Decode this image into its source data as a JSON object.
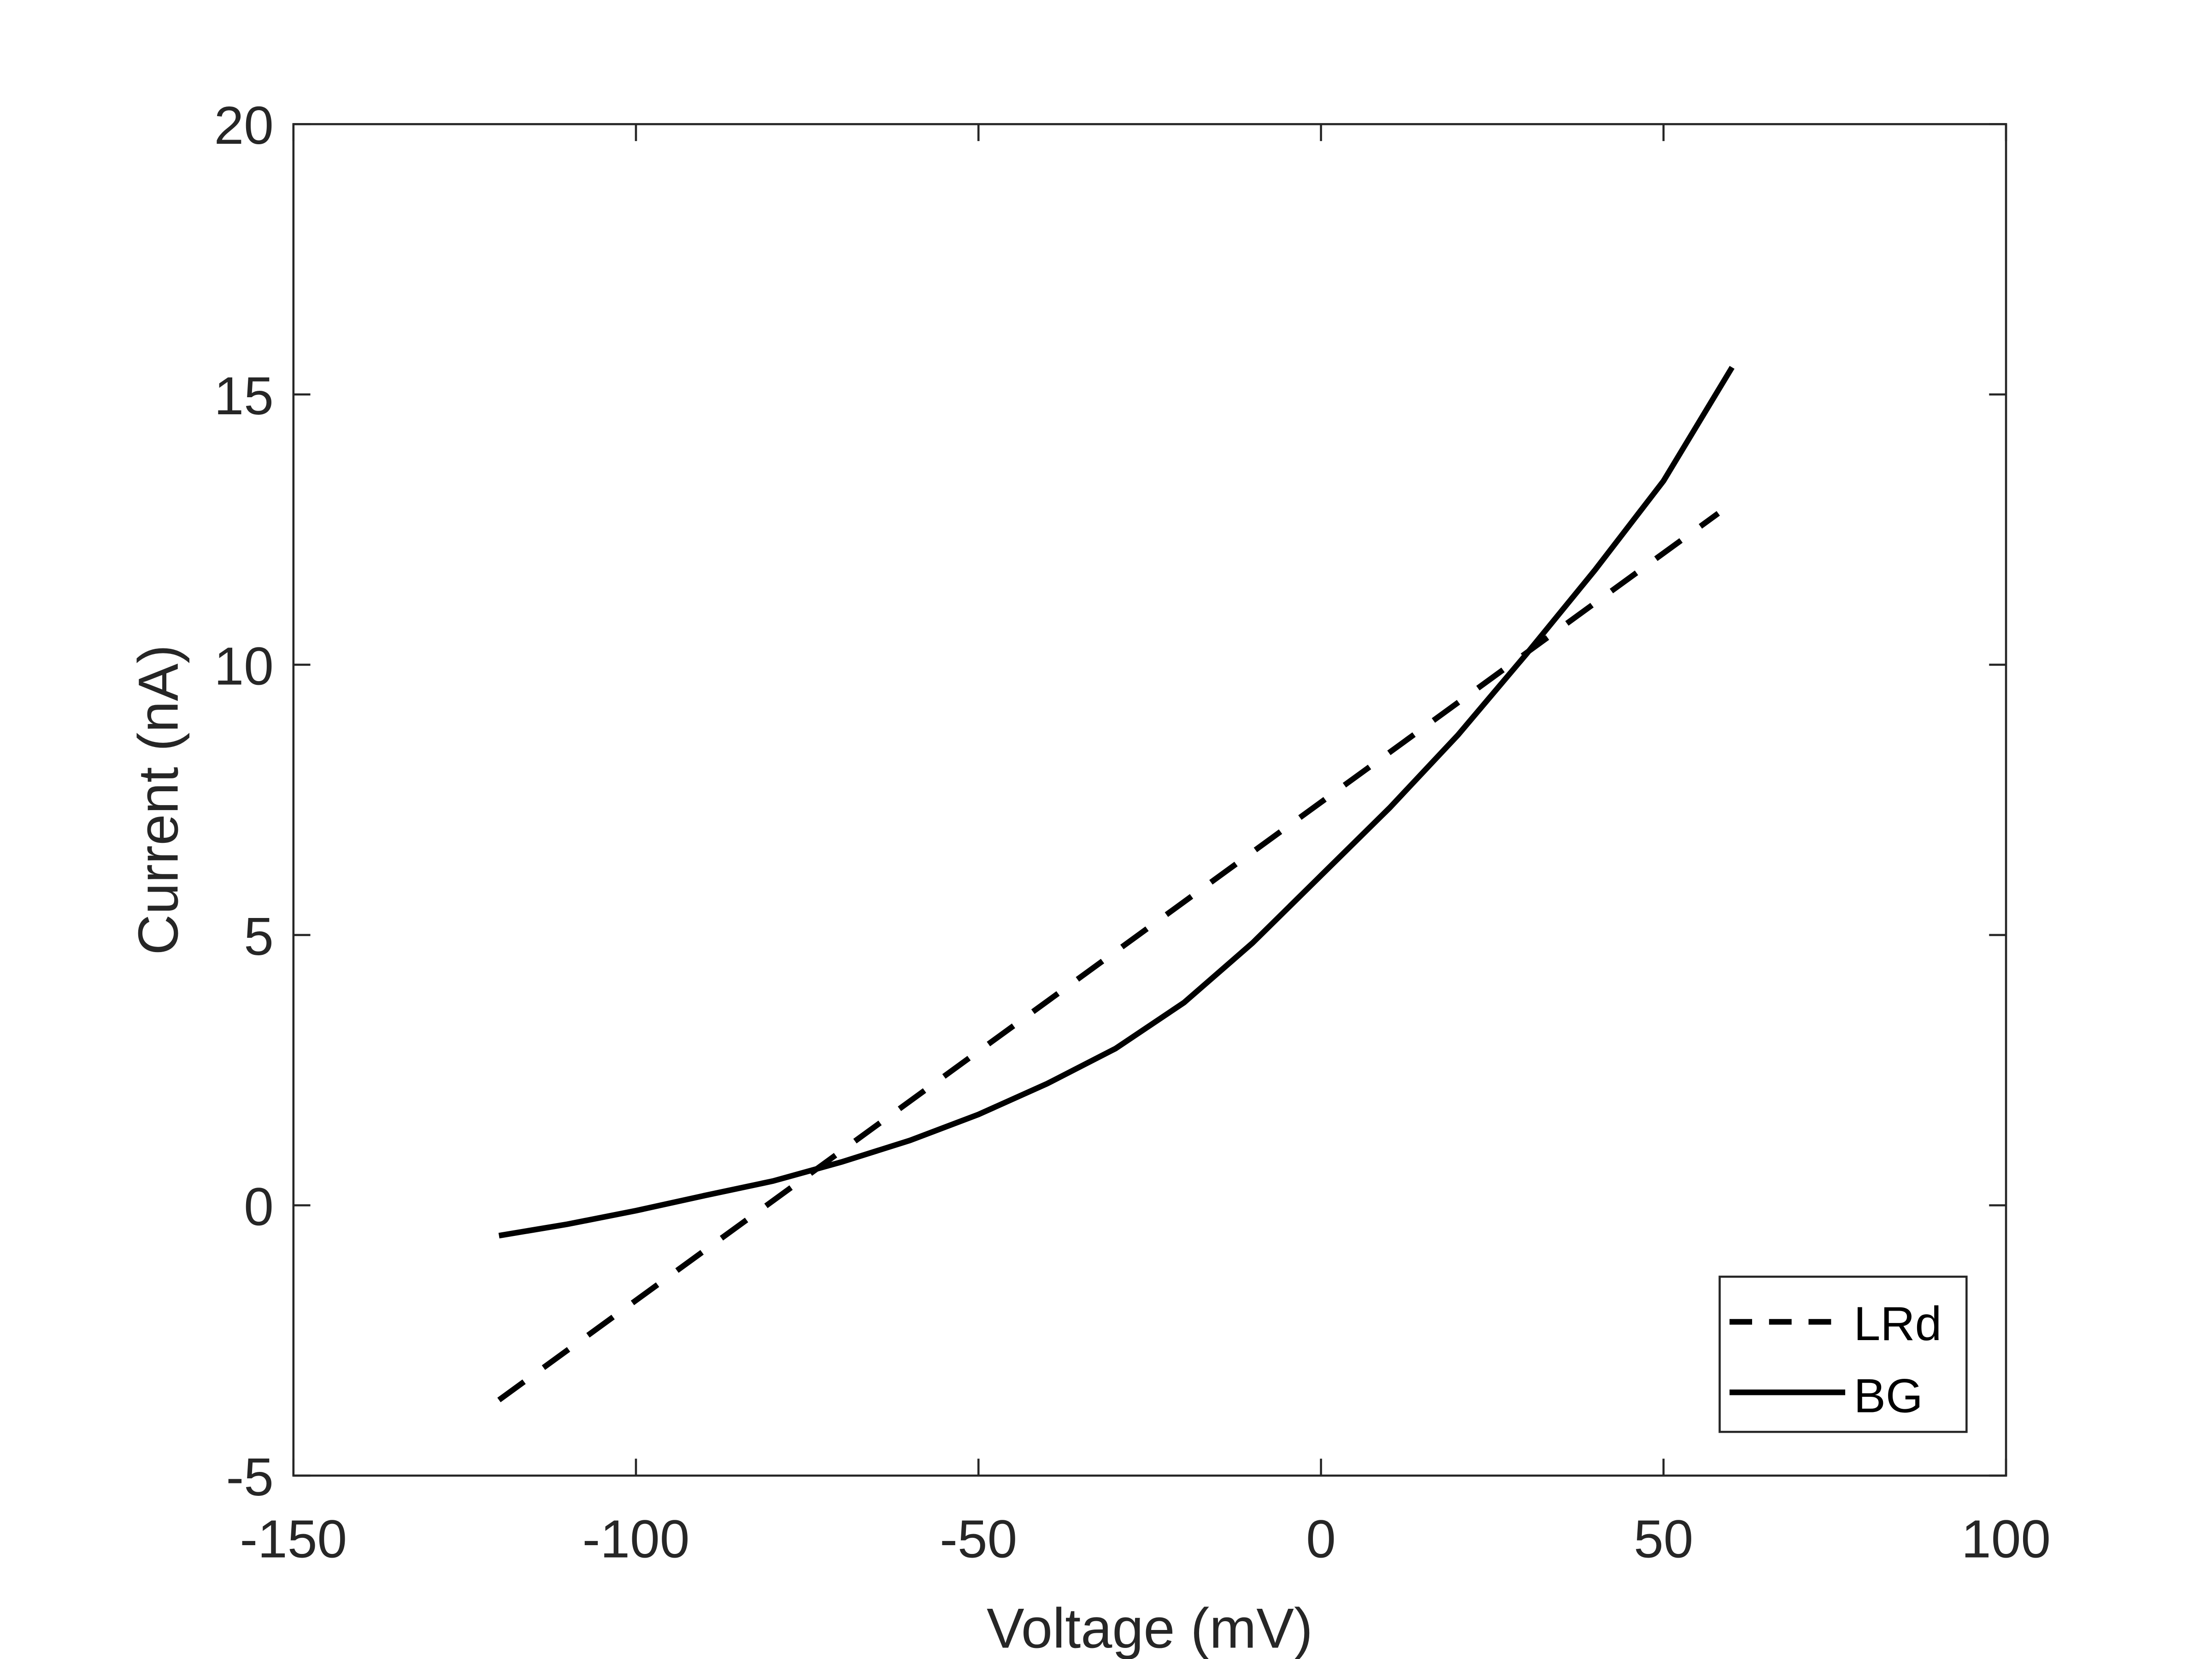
{
  "chart_data": {
    "type": "line",
    "title": "",
    "xlabel": "Voltage (mV)",
    "ylabel": "Current (nA)",
    "xlim": [
      -150,
      100
    ],
    "ylim": [
      -5,
      20
    ],
    "xticks": [
      -150,
      -100,
      -50,
      0,
      50,
      100
    ],
    "yticks": [
      -5,
      0,
      5,
      10,
      15,
      20
    ],
    "grid": false,
    "legend_placement": "bottom-right",
    "series": [
      {
        "name": "LRd",
        "style": "dashed",
        "color": "#000000",
        "x": [
          -120,
          58
        ],
        "y": [
          -3.6,
          12.8
        ]
      },
      {
        "name": "BG",
        "style": "solid",
        "color": "#000000",
        "x": [
          -120,
          -110,
          -100,
          -90,
          -80,
          -70,
          -60,
          -50,
          -40,
          -30,
          -20,
          -10,
          0,
          10,
          20,
          30,
          40,
          50,
          60
        ],
        "y": [
          -0.56,
          -0.35,
          -0.1,
          0.18,
          0.45,
          0.8,
          1.2,
          1.68,
          2.25,
          2.9,
          3.75,
          4.85,
          6.1,
          7.35,
          8.7,
          10.2,
          11.75,
          13.4,
          15.5
        ]
      }
    ]
  }
}
